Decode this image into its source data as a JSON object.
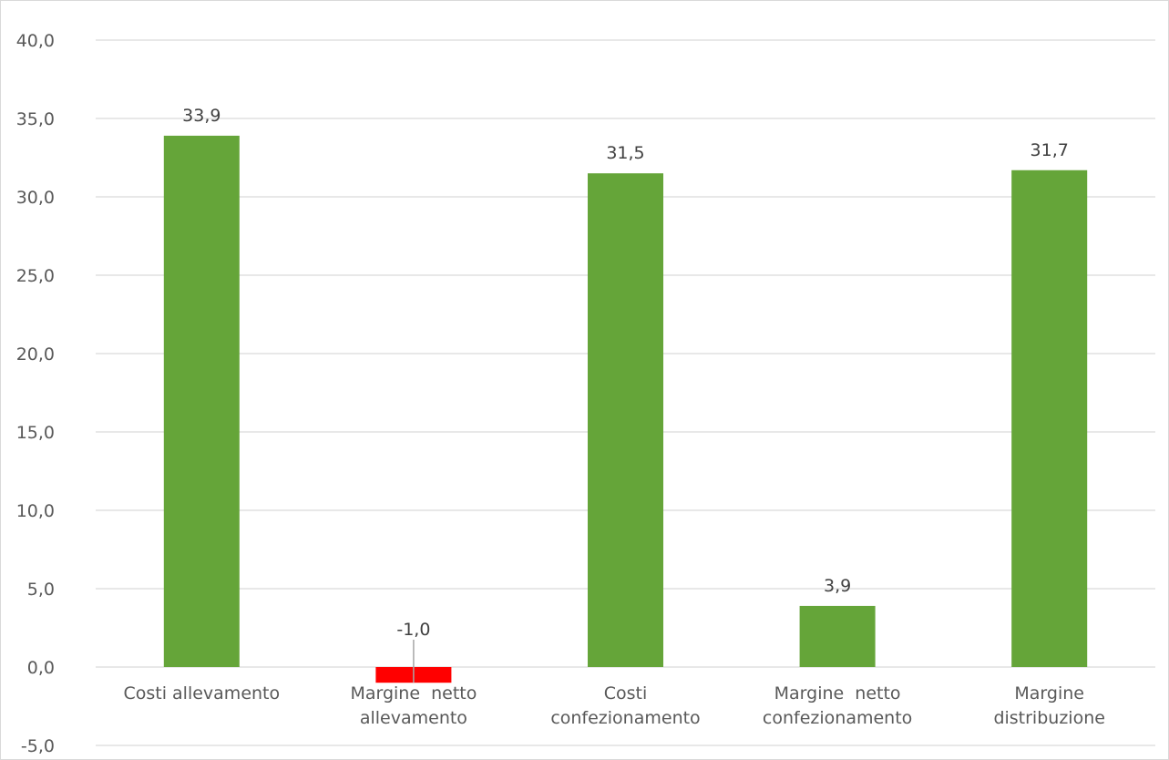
{
  "chart_data": {
    "type": "bar",
    "title": "",
    "xlabel": "",
    "ylabel": "",
    "categories": [
      [
        "Costi allevamento"
      ],
      [
        "Margine  netto",
        "allevamento"
      ],
      [
        "Costi",
        "confezionamento"
      ],
      [
        "Margine  netto",
        "confezionamento"
      ],
      [
        "Margine",
        "distribuzione"
      ]
    ],
    "values": [
      33.9,
      -1.0,
      31.5,
      3.9,
      31.7
    ],
    "value_labels": [
      "33,9",
      "-1,0",
      "31,5",
      "3,9",
      "31,7"
    ],
    "ylim": [
      -5,
      40
    ],
    "ytick_values": [
      -5,
      0,
      5,
      10,
      15,
      20,
      25,
      30,
      35,
      40
    ],
    "ytick_labels": [
      "-5,0",
      "0,0",
      "5,0",
      "10,0",
      "15,0",
      "20,0",
      "25,0",
      "30,0",
      "35,0",
      "40,0"
    ],
    "grid": true,
    "colors": {
      "positive": "#65a539",
      "negative": "#ff0000"
    }
  }
}
